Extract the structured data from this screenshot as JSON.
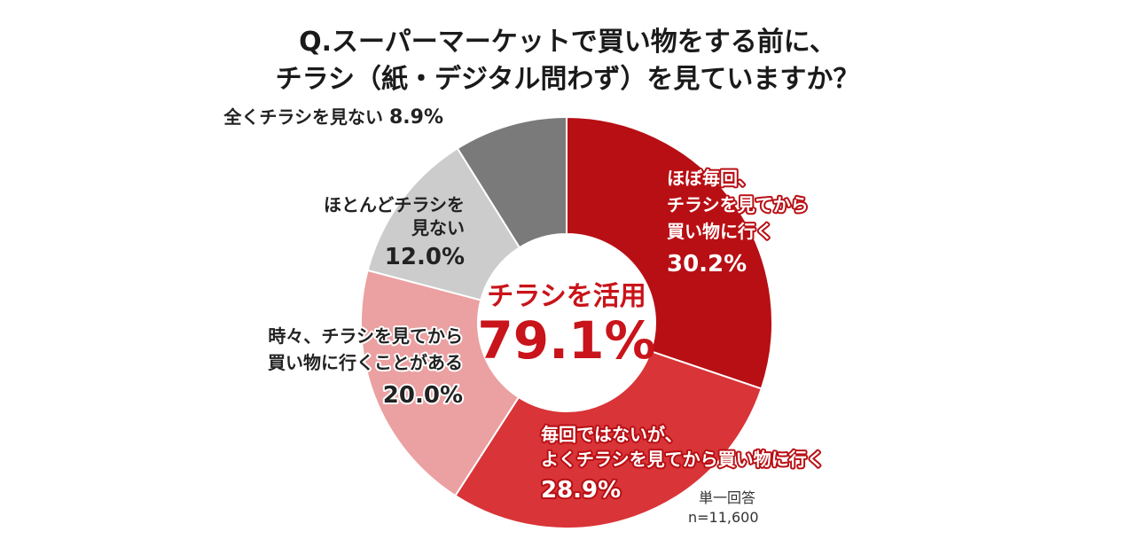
{
  "title_lines": [
    "Q.スーパーマーケットで買い物をする前に、",
    "チラシ（紙・デジタル問わず）を見ていますか？"
  ],
  "center": {
    "label": "チラシを活用",
    "value": "79.1%"
  },
  "note": {
    "answer_type": "単一回答",
    "n": "n=11,600"
  },
  "chart_data": {
    "type": "pie",
    "style": "donut",
    "title": "Q.スーパーマーケットで買い物をする前に、チラシ（紙・デジタル問わず）を見ていますか？",
    "series": [
      {
        "name": "ほぼ毎回、チラシを見てから買い物に行く",
        "label_lines": [
          "ほぼ毎回、",
          "チラシを見てから",
          "買い物に行く"
        ],
        "value": 30.2,
        "pct_text": "30.2%",
        "color": "#b80f14"
      },
      {
        "name": "毎回ではないが、よくチラシを見てから買い物に行く",
        "label_lines": [
          "毎回ではないが、",
          "よくチラシを見てから買い物に行く"
        ],
        "value": 28.9,
        "pct_text": "28.9%",
        "color": "#d93438"
      },
      {
        "name": "時々、チラシを見てから買い物に行くことがある",
        "label_lines": [
          "時々、チラシを見てから",
          "買い物に行くことがある"
        ],
        "value": 20.0,
        "pct_text": "20.0%",
        "color": "#eba0a2"
      },
      {
        "name": "ほとんどチラシを見ない",
        "label_lines": [
          "ほとんどチラシを",
          "見ない"
        ],
        "value": 12.0,
        "pct_text": "12.0%",
        "color": "#cccccc"
      },
      {
        "name": "全くチラシを見ない",
        "label_lines": [
          "全くチラシを見ない"
        ],
        "value": 8.9,
        "pct_text": "8.9%",
        "color": "#7a7a7a"
      }
    ]
  }
}
